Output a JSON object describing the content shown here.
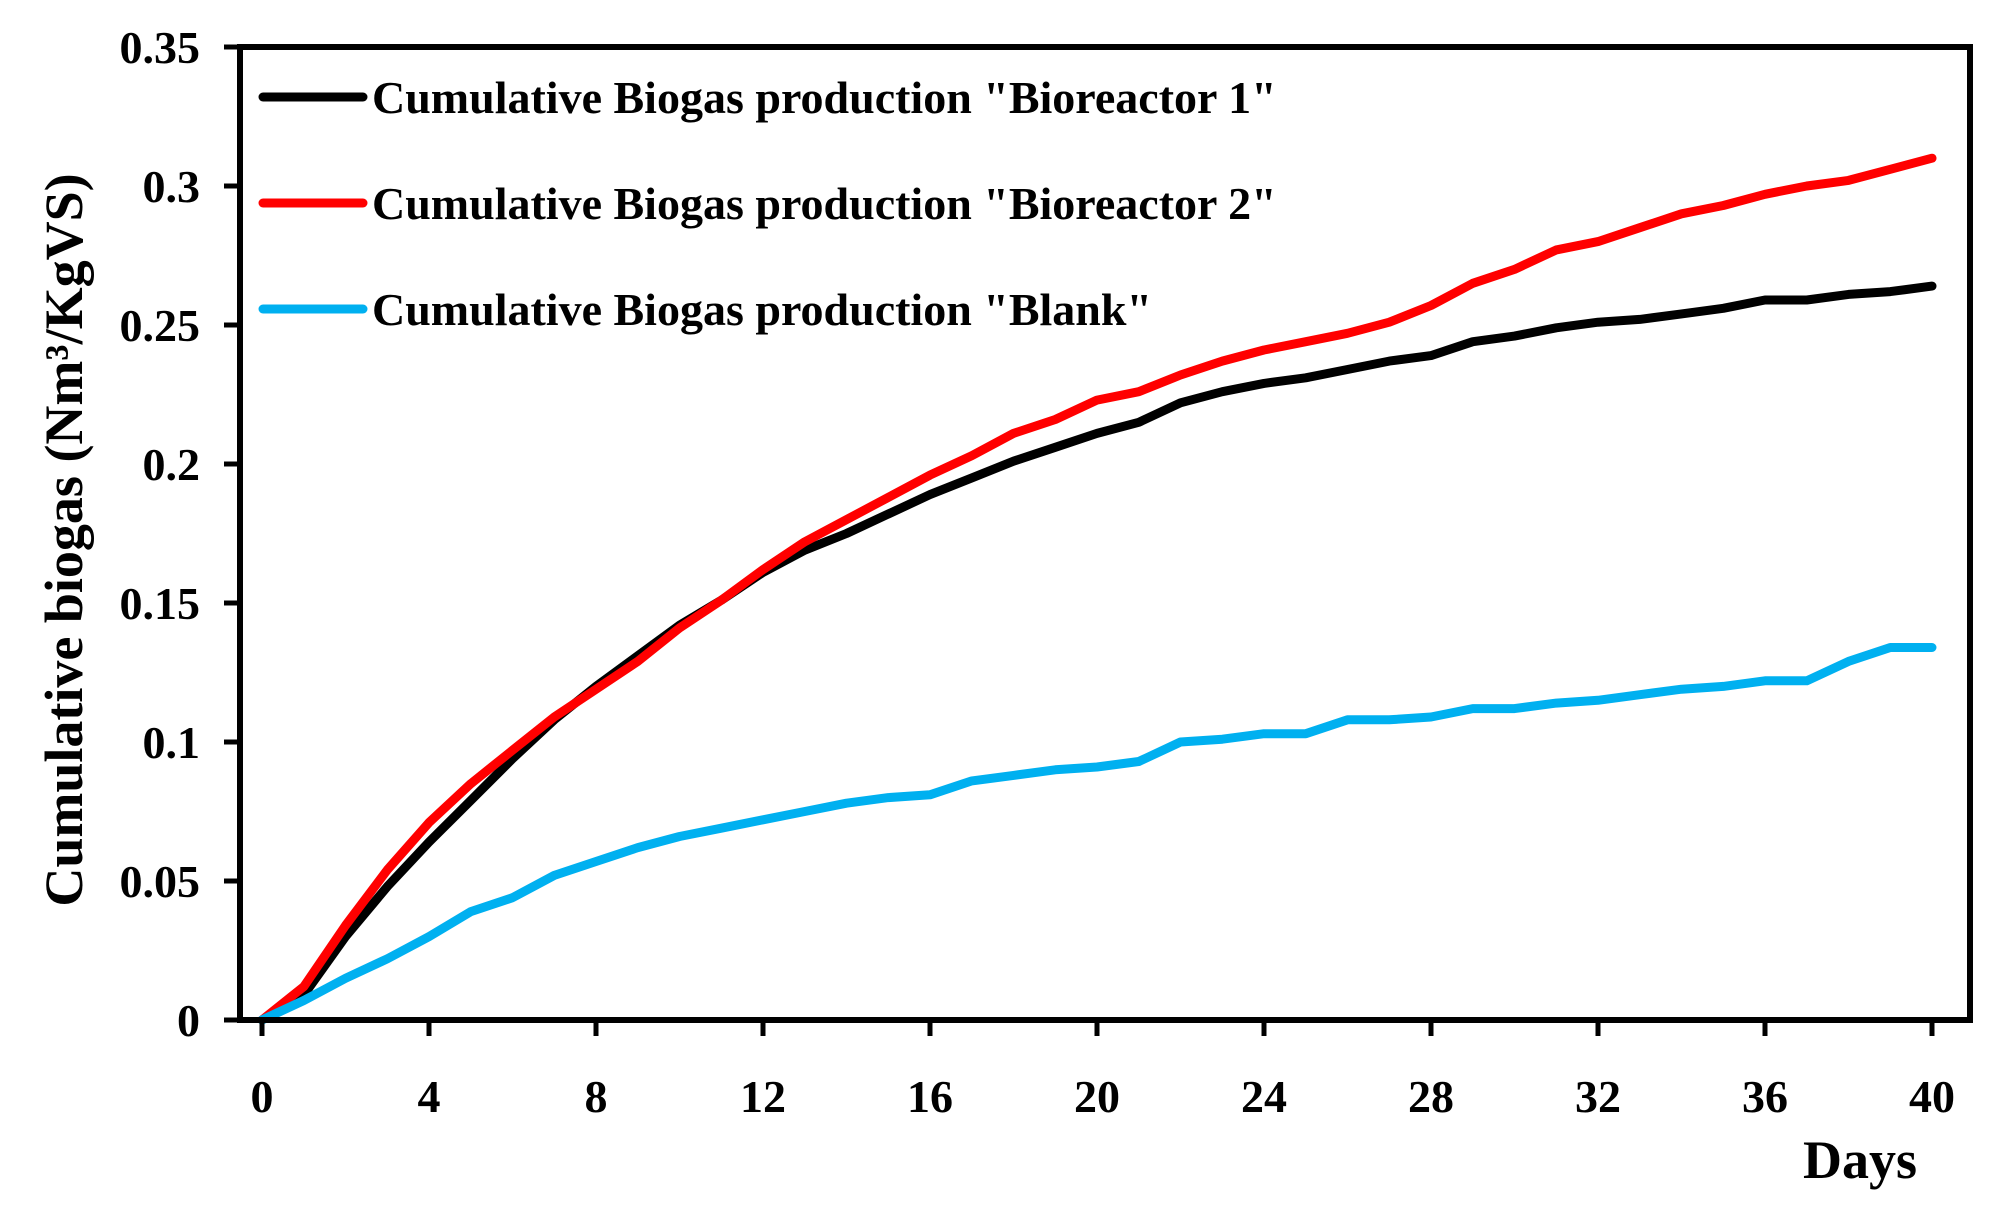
{
  "chart_data": {
    "type": "line",
    "title": "",
    "xlabel": "Days",
    "ylabel": "Cumulative biogas (Nm³/KgVS)",
    "xlim": [
      0,
      40
    ],
    "ylim": [
      0,
      0.35
    ],
    "x_ticks": [
      0,
      4,
      8,
      12,
      16,
      20,
      24,
      28,
      32,
      36,
      40
    ],
    "x_tick_labels": [
      "0",
      "4",
      "8",
      "12",
      "16",
      "20",
      "24",
      "28",
      "32",
      "36",
      "40"
    ],
    "y_ticks": [
      0,
      0.05,
      0.1,
      0.15,
      0.2,
      0.25,
      0.3,
      0.35
    ],
    "y_tick_labels": [
      "0",
      "0.05",
      "0.1",
      "0.15",
      "0.2",
      "0.25",
      "0.3",
      "0.35"
    ],
    "grid": false,
    "legend_position": "top-left",
    "x": [
      0,
      1,
      2,
      3,
      4,
      5,
      6,
      7,
      8,
      9,
      10,
      11,
      12,
      13,
      14,
      15,
      16,
      17,
      18,
      19,
      20,
      21,
      22,
      23,
      24,
      25,
      26,
      27,
      28,
      29,
      30,
      31,
      32,
      33,
      34,
      35,
      36,
      37,
      38,
      39,
      40
    ],
    "series": [
      {
        "name": "Cumulative Biogas production \"Bioreactor 1\"",
        "color": "#000000",
        "values": [
          0,
          0.009,
          0.03,
          0.048,
          0.064,
          0.079,
          0.094,
          0.108,
          0.12,
          0.131,
          0.142,
          0.151,
          0.161,
          0.169,
          0.175,
          0.182,
          0.189,
          0.195,
          0.201,
          0.206,
          0.211,
          0.215,
          0.222,
          0.226,
          0.229,
          0.231,
          0.234,
          0.237,
          0.239,
          0.244,
          0.246,
          0.249,
          0.251,
          0.252,
          0.254,
          0.256,
          0.259,
          0.259,
          0.261,
          0.262,
          0.264
        ]
      },
      {
        "name": "Cumulative Biogas production \"Bioreactor 2\"",
        "color": "#ff0000",
        "values": [
          0,
          0.012,
          0.034,
          0.054,
          0.071,
          0.085,
          0.097,
          0.109,
          0.119,
          0.129,
          0.141,
          0.151,
          0.162,
          0.172,
          0.18,
          0.188,
          0.196,
          0.203,
          0.211,
          0.216,
          0.223,
          0.226,
          0.232,
          0.237,
          0.241,
          0.244,
          0.247,
          0.251,
          0.257,
          0.265,
          0.27,
          0.277,
          0.28,
          0.285,
          0.29,
          0.293,
          0.297,
          0.3,
          0.302,
          0.306,
          0.31
        ]
      },
      {
        "name": "Cumulative Biogas production \"Blank\"",
        "color": "#00b0f0",
        "values": [
          0,
          0.007,
          0.015,
          0.022,
          0.03,
          0.039,
          0.044,
          0.052,
          0.057,
          0.062,
          0.066,
          0.069,
          0.072,
          0.075,
          0.078,
          0.08,
          0.081,
          0.086,
          0.088,
          0.09,
          0.091,
          0.093,
          0.1,
          0.101,
          0.103,
          0.103,
          0.108,
          0.108,
          0.109,
          0.112,
          0.112,
          0.114,
          0.115,
          0.117,
          0.119,
          0.12,
          0.122,
          0.122,
          0.129,
          0.134,
          0.134
        ]
      }
    ]
  }
}
